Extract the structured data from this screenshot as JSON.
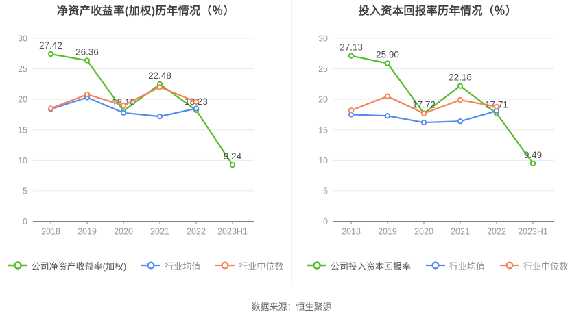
{
  "colors": {
    "company": "#53be28",
    "industry_avg": "#5389ef",
    "industry_median": "#f5825a",
    "grid": "#e4eaf3",
    "axis": "#808080",
    "tick_label": "#999999",
    "value_label": "#4d4d4d",
    "title": "#404040"
  },
  "footer": {
    "source": "数据来源：恒生聚源"
  },
  "charts": [
    {
      "title": "净资产收益率(加权)历年情况（％）",
      "chart_data": {
        "type": "line",
        "categories": [
          "2018",
          "2019",
          "2020",
          "2021",
          "2022",
          "2023H1"
        ],
        "ylim": [
          0,
          30
        ],
        "yticks": [
          30,
          25,
          20,
          15,
          10,
          5,
          0
        ],
        "grid": true,
        "legend_position": "bottom",
        "series": [
          {
            "name": "公司净资产收益率(加权)",
            "color_key": "company",
            "values": [
              27.42,
              26.36,
              18.1,
              22.48,
              18.23,
              9.24
            ],
            "value_labels": [
              "27.42",
              "26.36",
              "18.10",
              "22.48",
              "18.23",
              "9.24"
            ]
          },
          {
            "name": "行业均值",
            "color_key": "industry_avg",
            "values": [
              18.4,
              20.3,
              17.8,
              17.2,
              18.5,
              null
            ]
          },
          {
            "name": "行业中位数",
            "color_key": "industry_median",
            "values": [
              18.5,
              20.8,
              19.0,
              22.0,
              19.6,
              null
            ]
          }
        ]
      }
    },
    {
      "title": "投入资本回报率历年情况（％）",
      "chart_data": {
        "type": "line",
        "categories": [
          "2018",
          "2019",
          "2020",
          "2021",
          "2022",
          "2023H1"
        ],
        "ylim": [
          0,
          30
        ],
        "yticks": [
          30,
          25,
          20,
          15,
          10,
          5,
          0
        ],
        "grid": true,
        "legend_position": "bottom",
        "series": [
          {
            "name": "公司投入资本回报率",
            "color_key": "company",
            "values": [
              27.13,
              25.9,
              17.72,
              22.18,
              17.71,
              9.49
            ],
            "value_labels": [
              "27.13",
              "25.90",
              "17.72",
              "22.18",
              "17.71",
              "9.49"
            ]
          },
          {
            "name": "行业均值",
            "color_key": "industry_avg",
            "values": [
              17.5,
              17.3,
              16.2,
              16.4,
              18.1,
              null
            ]
          },
          {
            "name": "行业中位数",
            "color_key": "industry_median",
            "values": [
              18.2,
              20.5,
              17.7,
              19.9,
              18.8,
              null
            ]
          }
        ]
      }
    }
  ]
}
